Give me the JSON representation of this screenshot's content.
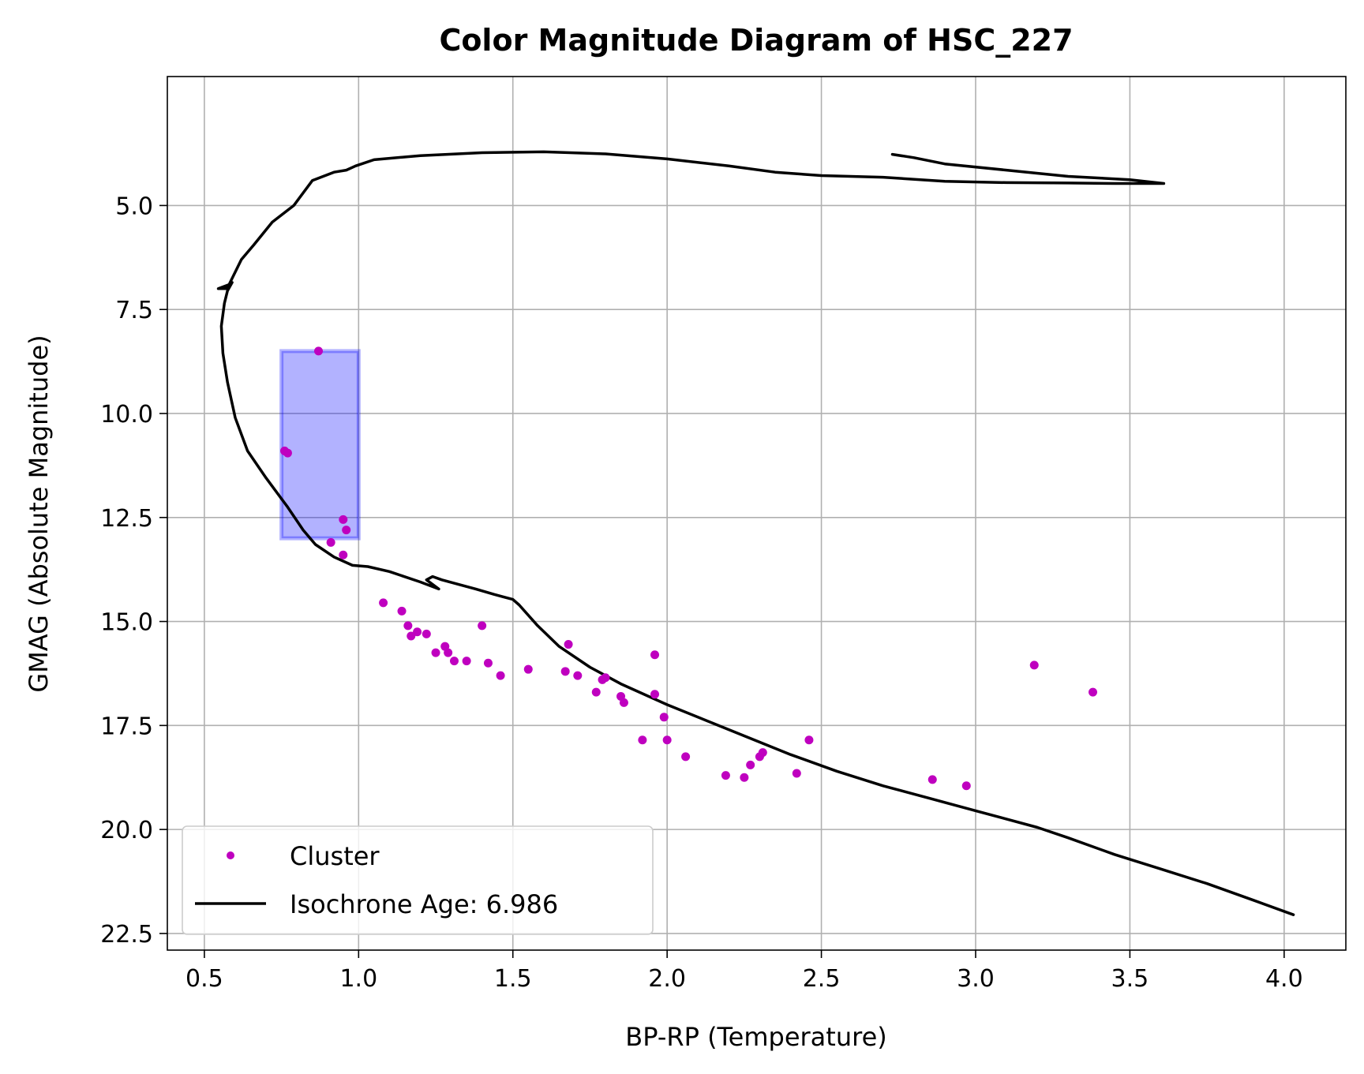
{
  "chart_data": {
    "type": "scatter",
    "title": "Color Magnitude Diagram of HSC_227",
    "xlabel": "BP-RP (Temperature)",
    "ylabel": "GMAG (Absolute Magnitude)",
    "xlim": [
      0.38,
      4.2
    ],
    "ylim": [
      22.9,
      1.9
    ],
    "y_inverted": true,
    "grid": true,
    "xticks": [
      0.5,
      1.0,
      1.5,
      2.0,
      2.5,
      3.0,
      3.5,
      4.0
    ],
    "xtick_labels": [
      "0.5",
      "1.0",
      "1.5",
      "2.0",
      "2.5",
      "3.0",
      "3.5",
      "4.0"
    ],
    "yticks": [
      5.0,
      7.5,
      10.0,
      12.5,
      15.0,
      17.5,
      20.0,
      22.5
    ],
    "ytick_labels": [
      "5.0",
      "7.5",
      "10.0",
      "12.5",
      "15.0",
      "17.5",
      "20.0",
      "22.5"
    ],
    "legend_position": "lower-left",
    "colors": {
      "cluster": "#bf00bf",
      "isochrone": "#000000",
      "box_fill": "#0000ff",
      "grid": "#b0b0b0"
    },
    "highlight_box": {
      "x0": 0.75,
      "x1": 1.0,
      "y0": 8.5,
      "y1": 13.0
    },
    "series": [
      {
        "name": "Cluster",
        "legend_label": "Cluster",
        "type": "scatter",
        "points": [
          [
            0.87,
            8.5
          ],
          [
            0.76,
            10.9
          ],
          [
            0.77,
            10.95
          ],
          [
            0.95,
            12.55
          ],
          [
            0.96,
            12.8
          ],
          [
            0.91,
            13.1
          ],
          [
            0.95,
            13.4
          ],
          [
            1.08,
            14.55
          ],
          [
            1.14,
            14.75
          ],
          [
            1.16,
            15.1
          ],
          [
            1.19,
            15.25
          ],
          [
            1.22,
            15.3
          ],
          [
            1.17,
            15.35
          ],
          [
            1.28,
            15.6
          ],
          [
            1.25,
            15.75
          ],
          [
            1.29,
            15.75
          ],
          [
            1.31,
            15.95
          ],
          [
            1.35,
            15.95
          ],
          [
            1.4,
            15.1
          ],
          [
            1.42,
            16.0
          ],
          [
            1.46,
            16.3
          ],
          [
            1.55,
            16.15
          ],
          [
            1.67,
            16.2
          ],
          [
            1.71,
            16.3
          ],
          [
            1.68,
            15.55
          ],
          [
            1.77,
            16.7
          ],
          [
            1.79,
            16.4
          ],
          [
            1.8,
            16.35
          ],
          [
            1.85,
            16.8
          ],
          [
            1.86,
            16.95
          ],
          [
            1.96,
            15.8
          ],
          [
            1.96,
            16.75
          ],
          [
            1.99,
            17.3
          ],
          [
            2.0,
            17.85
          ],
          [
            1.92,
            17.85
          ],
          [
            2.06,
            18.25
          ],
          [
            2.19,
            18.7
          ],
          [
            2.25,
            18.75
          ],
          [
            2.27,
            18.45
          ],
          [
            2.3,
            18.25
          ],
          [
            2.31,
            18.15
          ],
          [
            2.42,
            18.65
          ],
          [
            2.46,
            17.85
          ],
          [
            2.86,
            18.8
          ],
          [
            2.97,
            18.95
          ],
          [
            3.19,
            16.05
          ],
          [
            3.38,
            16.7
          ]
        ]
      },
      {
        "name": "Isochrone",
        "legend_label": "Isochrone Age: 6.986",
        "type": "line",
        "points": [
          [
            4.03,
            22.05
          ],
          [
            3.9,
            21.7
          ],
          [
            3.75,
            21.3
          ],
          [
            3.6,
            20.95
          ],
          [
            3.45,
            20.6
          ],
          [
            3.3,
            20.2
          ],
          [
            3.2,
            19.95
          ],
          [
            3.0,
            19.55
          ],
          [
            2.85,
            19.25
          ],
          [
            2.7,
            18.95
          ],
          [
            2.55,
            18.6
          ],
          [
            2.4,
            18.2
          ],
          [
            2.2,
            17.6
          ],
          [
            2.0,
            17.0
          ],
          [
            1.85,
            16.5
          ],
          [
            1.75,
            16.1
          ],
          [
            1.65,
            15.6
          ],
          [
            1.58,
            15.1
          ],
          [
            1.52,
            14.6
          ],
          [
            1.5,
            14.47
          ],
          [
            1.44,
            14.35
          ],
          [
            1.38,
            14.22
          ],
          [
            1.33,
            14.12
          ],
          [
            1.27,
            14.0
          ],
          [
            1.24,
            13.92
          ],
          [
            1.22,
            14.0
          ],
          [
            1.26,
            14.22
          ],
          [
            1.2,
            14.05
          ],
          [
            1.1,
            13.8
          ],
          [
            1.03,
            13.68
          ],
          [
            0.98,
            13.65
          ],
          [
            0.92,
            13.45
          ],
          [
            0.86,
            13.15
          ],
          [
            0.82,
            12.8
          ],
          [
            0.77,
            12.25
          ],
          [
            0.7,
            11.55
          ],
          [
            0.64,
            10.9
          ],
          [
            0.6,
            10.1
          ],
          [
            0.575,
            9.25
          ],
          [
            0.56,
            8.55
          ],
          [
            0.555,
            7.9
          ],
          [
            0.565,
            7.35
          ],
          [
            0.575,
            7.05
          ],
          [
            0.59,
            6.85
          ],
          [
            0.57,
            7.0
          ],
          [
            0.545,
            7.0
          ],
          [
            0.58,
            6.9
          ],
          [
            0.62,
            6.3
          ],
          [
            0.66,
            5.95
          ],
          [
            0.72,
            5.4
          ],
          [
            0.79,
            5.0
          ],
          [
            0.85,
            4.4
          ],
          [
            0.92,
            4.2
          ],
          [
            0.96,
            4.15
          ],
          [
            0.99,
            4.05
          ],
          [
            1.05,
            3.9
          ],
          [
            1.2,
            3.8
          ],
          [
            1.4,
            3.73
          ],
          [
            1.6,
            3.71
          ],
          [
            1.8,
            3.76
          ],
          [
            2.0,
            3.88
          ],
          [
            2.2,
            4.05
          ],
          [
            2.35,
            4.2
          ],
          [
            2.5,
            4.28
          ],
          [
            2.7,
            4.32
          ],
          [
            2.9,
            4.42
          ],
          [
            3.1,
            4.45
          ],
          [
            3.3,
            4.46
          ],
          [
            3.45,
            4.47
          ],
          [
            3.55,
            4.47
          ],
          [
            3.61,
            4.47
          ],
          [
            3.5,
            4.38
          ],
          [
            3.3,
            4.3
          ],
          [
            3.1,
            4.15
          ],
          [
            2.9,
            4.0
          ],
          [
            2.8,
            3.85
          ],
          [
            2.73,
            3.77
          ]
        ]
      }
    ]
  }
}
